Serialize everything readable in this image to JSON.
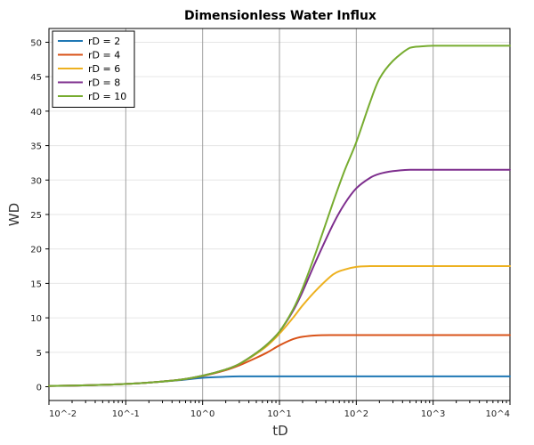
{
  "chart_data": {
    "type": "line",
    "title": "Dimensionless Water Influx",
    "xlabel": "tD",
    "ylabel": "WD",
    "x_scale": "log",
    "xlim": [
      0.01,
      10000
    ],
    "ylim": [
      -2,
      52
    ],
    "x_ticks": [
      0.01,
      0.1,
      1,
      10,
      100,
      1000,
      10000
    ],
    "x_tick_labels": [
      "10^-2",
      "10^-1",
      "10^0",
      "10^1",
      "10^2",
      "10^3",
      "10^4"
    ],
    "y_ticks": [
      0,
      5,
      10,
      15,
      20,
      25,
      30,
      35,
      40,
      45,
      50
    ],
    "y_tick_labels": [
      "0",
      "5",
      "10",
      "15",
      "20",
      "25",
      "30",
      "35",
      "40",
      "45",
      "50"
    ],
    "grid": true,
    "legend_position": "top-left",
    "x": [
      0.01,
      0.02,
      0.05,
      0.1,
      0.2,
      0.5,
      1,
      2,
      3,
      5,
      7,
      10,
      15,
      20,
      30,
      50,
      70,
      100,
      150,
      200,
      300,
      500,
      700,
      1000,
      2000,
      5000,
      10000
    ],
    "series": [
      {
        "name": "rD = 2",
        "color": "#1f77b4",
        "values": [
          0.12,
          0.17,
          0.27,
          0.4,
          0.6,
          0.95,
          1.3,
          1.45,
          1.5,
          1.5,
          1.5,
          1.5,
          1.5,
          1.5,
          1.5,
          1.5,
          1.5,
          1.5,
          1.5,
          1.5,
          1.5,
          1.5,
          1.5,
          1.5,
          1.5,
          1.5,
          1.5
        ]
      },
      {
        "name": "rD = 4",
        "color": "#d95319",
        "values": [
          0.12,
          0.17,
          0.27,
          0.4,
          0.6,
          1.0,
          1.55,
          2.4,
          3.1,
          4.2,
          5.0,
          6.0,
          6.9,
          7.25,
          7.45,
          7.5,
          7.5,
          7.5,
          7.5,
          7.5,
          7.5,
          7.5,
          7.5,
          7.5,
          7.5,
          7.5,
          7.5
        ]
      },
      {
        "name": "rD = 6",
        "color": "#edb120",
        "values": [
          0.12,
          0.17,
          0.27,
          0.4,
          0.6,
          1.0,
          1.6,
          2.5,
          3.3,
          4.8,
          6.0,
          7.7,
          10.0,
          11.8,
          14.0,
          16.3,
          17.0,
          17.4,
          17.5,
          17.5,
          17.5,
          17.5,
          17.5,
          17.5,
          17.5,
          17.5,
          17.5
        ]
      },
      {
        "name": "rD = 8",
        "color": "#7e2f8e",
        "values": [
          0.12,
          0.17,
          0.27,
          0.4,
          0.6,
          1.0,
          1.6,
          2.5,
          3.3,
          4.9,
          6.2,
          8.0,
          11.0,
          13.8,
          18.3,
          23.6,
          26.5,
          28.8,
          30.3,
          30.9,
          31.3,
          31.5,
          31.5,
          31.5,
          31.5,
          31.5,
          31.5
        ]
      },
      {
        "name": "rD = 10",
        "color": "#77ac30",
        "values": [
          0.12,
          0.17,
          0.27,
          0.4,
          0.6,
          1.0,
          1.6,
          2.5,
          3.3,
          4.9,
          6.2,
          8.0,
          11.2,
          14.3,
          19.6,
          26.8,
          31.3,
          35.5,
          41.2,
          44.7,
          47.3,
          49.2,
          49.4,
          49.5,
          49.5,
          49.5,
          49.5
        ]
      }
    ]
  }
}
